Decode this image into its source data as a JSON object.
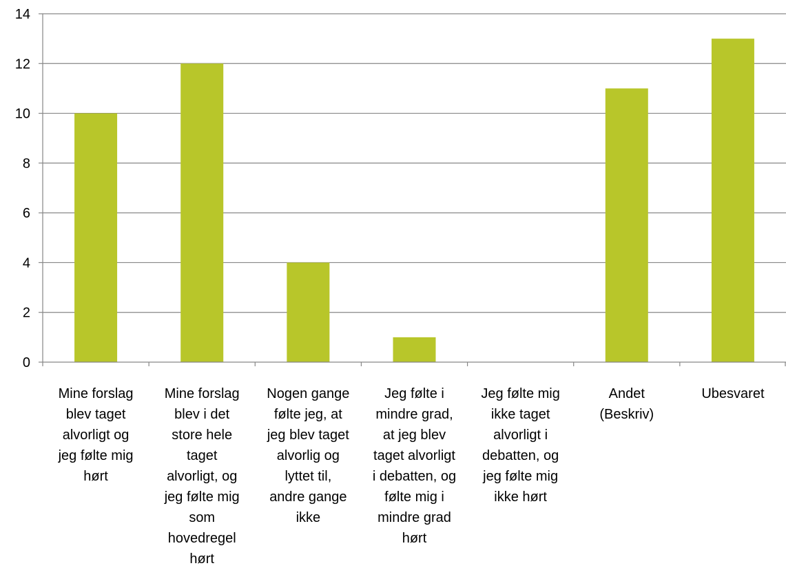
{
  "chart_data": {
    "type": "bar",
    "categories": [
      [
        "Mine forslag",
        "blev taget",
        "alvorligt og",
        "jeg følte mig",
        "hørt"
      ],
      [
        "Mine forslag",
        "blev i det",
        "store hele",
        "taget",
        "alvorligt, og",
        "jeg følte mig",
        "som",
        "hovedregel",
        "hørt"
      ],
      [
        "Nogen gange",
        "følte jeg, at",
        "jeg blev taget",
        "alvorlig og",
        "lyttet til,",
        "andre gange",
        "ikke"
      ],
      [
        "Jeg følte i",
        "mindre grad,",
        "at jeg blev",
        "taget alvorligt",
        "i debatten, og",
        "følte mig i",
        "mindre grad",
        "hørt"
      ],
      [
        "Jeg følte mig",
        "ikke taget",
        "alvorligt i",
        "debatten, og",
        "jeg følte mig",
        "ikke hørt"
      ],
      [
        "Andet",
        "(Beskriv)"
      ],
      [
        "Ubesvaret"
      ]
    ],
    "values": [
      10,
      12,
      4,
      1,
      0,
      11,
      13
    ],
    "ylim": [
      0,
      14
    ],
    "yticks": [
      "0",
      "2",
      "4",
      "6",
      "8",
      "10",
      "12",
      "14"
    ],
    "grid": true,
    "legend": "none",
    "title": "",
    "xlabel": "",
    "ylabel": "",
    "bar_color": "#b8c62a",
    "grid_color": "#868686",
    "axis_color": "#868686"
  }
}
